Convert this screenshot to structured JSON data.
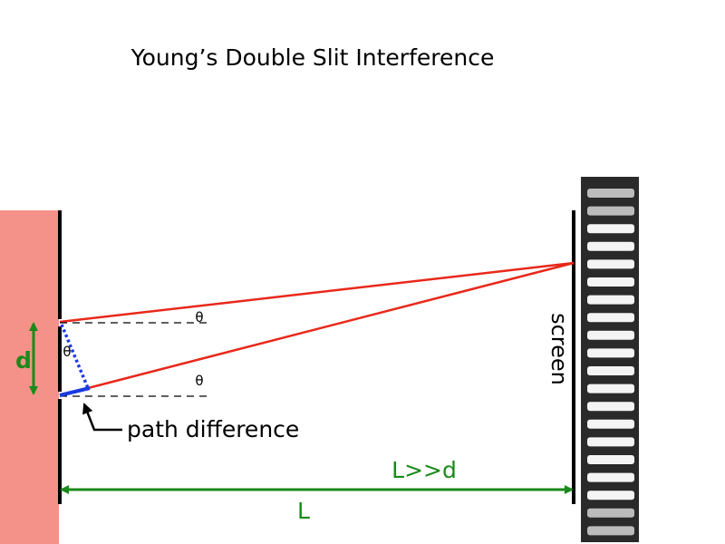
{
  "title": "Young’s Double Slit Interference",
  "labels": {
    "slit_separation": "d",
    "theta_top": "θ",
    "theta_mid": "θ",
    "theta_bottom": "θ",
    "path_difference": "path difference",
    "screen": "screen",
    "condition": "L>>d",
    "distance": "L"
  }
}
